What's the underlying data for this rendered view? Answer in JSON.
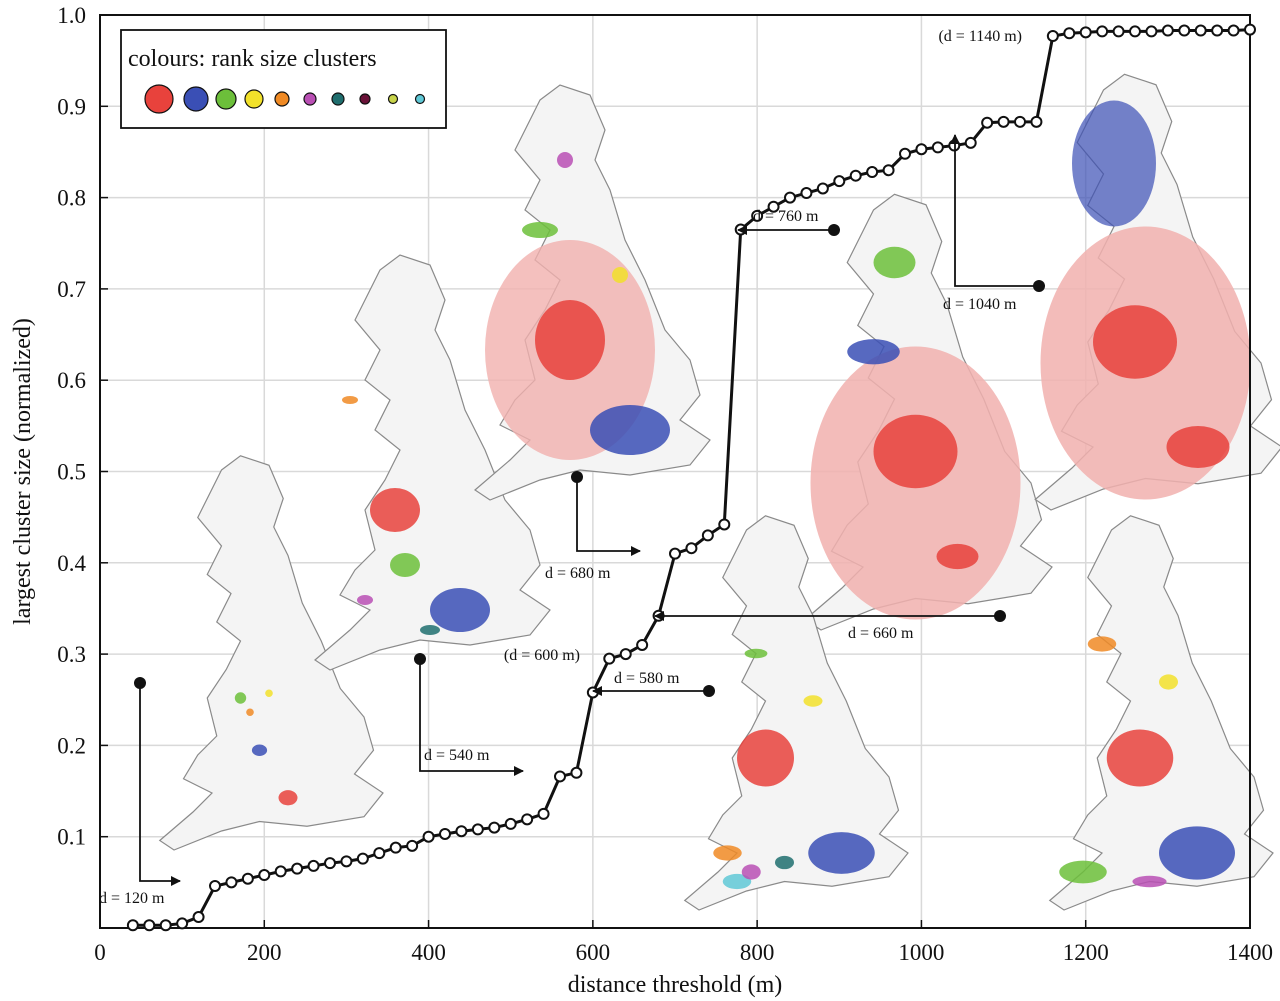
{
  "chart_data": {
    "type": "line",
    "title": "",
    "xlabel": "distance threshold (m)",
    "ylabel": "largest cluster size (normalized)",
    "xlim": [
      0,
      1400
    ],
    "ylim": [
      0,
      1.0
    ],
    "xticks": [
      0,
      200,
      400,
      600,
      800,
      1000,
      1200,
      1400
    ],
    "yticks": [
      0.1,
      0.2,
      0.3,
      0.4,
      0.5,
      0.6,
      0.7,
      0.8,
      0.9,
      1.0
    ],
    "grid": true,
    "series": [
      {
        "marker": "open-circle",
        "color": "#111111",
        "x": [
          40,
          60,
          80,
          100,
          120,
          140,
          160,
          180,
          200,
          220,
          240,
          260,
          280,
          300,
          320,
          340,
          360,
          380,
          400,
          420,
          440,
          460,
          480,
          500,
          520,
          540,
          560,
          580,
          600,
          620,
          640,
          660,
          680,
          700,
          720,
          740,
          760,
          780,
          800,
          820,
          840,
          860,
          880,
          900,
          920,
          940,
          960,
          980,
          1000,
          1020,
          1040,
          1060,
          1080,
          1100,
          1120,
          1140,
          1160,
          1180,
          1200,
          1220,
          1240,
          1260,
          1280,
          1300,
          1320,
          1340,
          1360,
          1380,
          1400
        ],
        "y": [
          0.003,
          0.003,
          0.003,
          0.005,
          0.012,
          0.046,
          0.05,
          0.054,
          0.058,
          0.062,
          0.065,
          0.068,
          0.071,
          0.073,
          0.076,
          0.082,
          0.088,
          0.09,
          0.1,
          0.103,
          0.106,
          0.108,
          0.11,
          0.114,
          0.119,
          0.125,
          0.166,
          0.17,
          0.258,
          0.295,
          0.3,
          0.31,
          0.342,
          0.41,
          0.416,
          0.43,
          0.442,
          0.765,
          0.78,
          0.79,
          0.8,
          0.805,
          0.81,
          0.818,
          0.824,
          0.828,
          0.83,
          0.848,
          0.853,
          0.855,
          0.857,
          0.86,
          0.882,
          0.883,
          0.883,
          0.883,
          0.977,
          0.98,
          0.981,
          0.982,
          0.982,
          0.982,
          0.982,
          0.983,
          0.983,
          0.983,
          0.983,
          0.983,
          0.984
        ]
      }
    ],
    "legend": {
      "title": "colours: rank size clusters",
      "placement": "top-left",
      "colors": [
        "#e8423c",
        "#3a4fb5",
        "#6cbf3a",
        "#f2e12a",
        "#f08a24",
        "#b94fb4",
        "#1f6e6e",
        "#6a1238",
        "#c8d44a",
        "#5fc8d6"
      ]
    },
    "annotations": [
      {
        "text": "d = 120 m"
      },
      {
        "text": "d = 540 m"
      },
      {
        "text": "(d = 600 m)"
      },
      {
        "text": "d = 580 m"
      },
      {
        "text": "d = 680 m"
      },
      {
        "text": "d = 660 m"
      },
      {
        "text": "d = 760 m"
      },
      {
        "text": "d = 1040 m"
      },
      {
        "text": "(d = 1140 m)"
      }
    ]
  }
}
